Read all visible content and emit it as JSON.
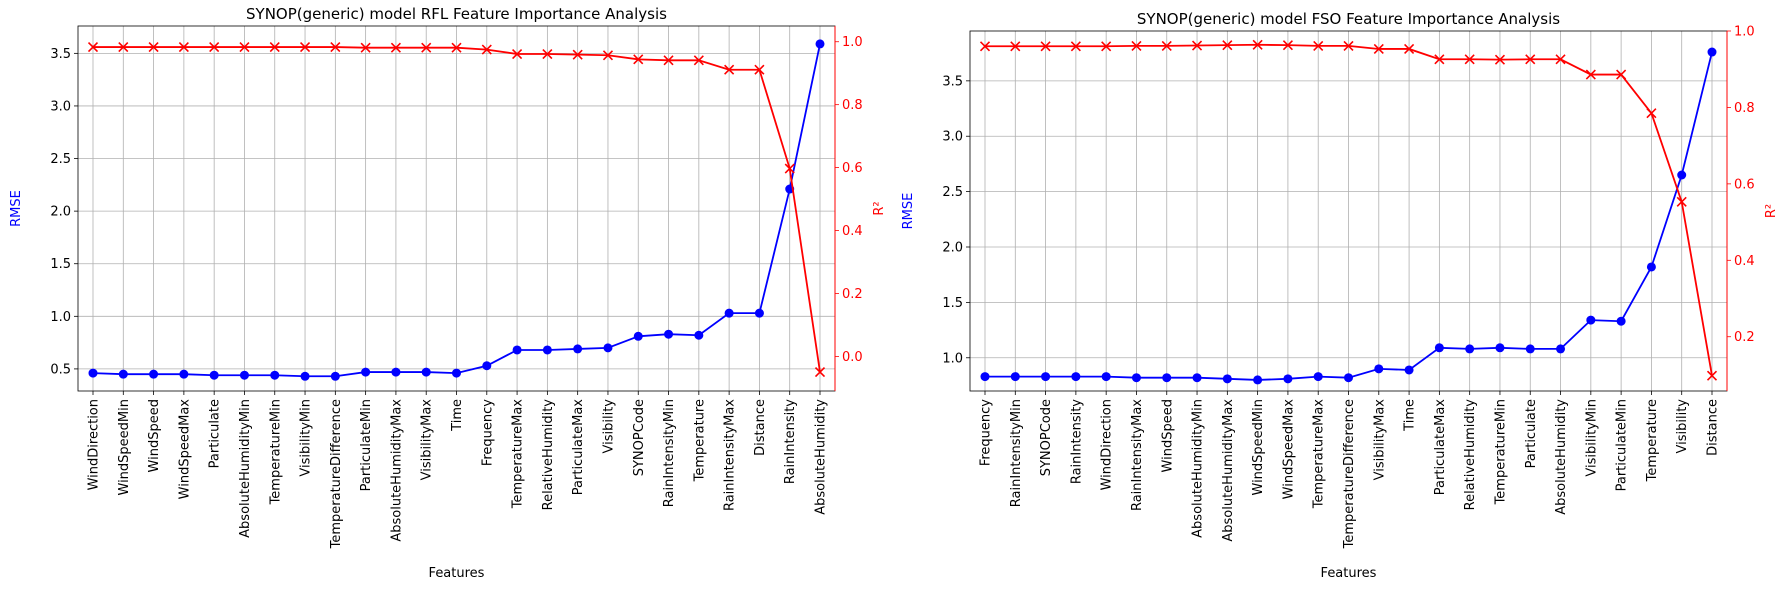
{
  "colors": {
    "rmse": "#0000ff",
    "r2": "#ff0000",
    "grid": "#b0b0b0",
    "axis": "#000000"
  },
  "chart_data": [
    {
      "type": "line",
      "title": "SYNOP(generic) model RFL Feature Importance Analysis",
      "xlabel": "Features",
      "ylabel": "RMSE",
      "y2label": "R²",
      "grid": true,
      "categories": [
        "WindDirection",
        "WindSpeedMin",
        "WindSpeed",
        "WindSpeedMax",
        "Particulate",
        "AbsoluteHumidityMin",
        "TemperatureMin",
        "VisibilityMin",
        "TemperatureDifference",
        "ParticulateMin",
        "AbsoluteHumidityMax",
        "VisibilityMax",
        "Time",
        "Frequency",
        "TemperatureMax",
        "RelativeHumidity",
        "ParticulateMax",
        "Visibility",
        "SYNOPCode",
        "RainIntensityMin",
        "Temperature",
        "RainIntensityMax",
        "Distance",
        "RainIntensity",
        "AbsoluteHumidity"
      ],
      "ylim": [
        0.29,
        3.76
      ],
      "yticks": [
        0.5,
        1.0,
        1.5,
        2.0,
        2.5,
        3.0,
        3.5
      ],
      "y2lim": [
        -0.11,
        1.05
      ],
      "y2ticks": [
        0.0,
        0.2,
        0.4,
        0.6,
        0.8,
        1.0
      ],
      "series": [
        {
          "axis": "left",
          "marker": "circle",
          "color": "#0000ff",
          "values": [
            0.46,
            0.45,
            0.45,
            0.45,
            0.44,
            0.44,
            0.44,
            0.43,
            0.43,
            0.47,
            0.47,
            0.47,
            0.46,
            0.53,
            0.68,
            0.68,
            0.69,
            0.7,
            0.81,
            0.83,
            0.82,
            1.03,
            1.03,
            2.21,
            3.59
          ]
        },
        {
          "axis": "right",
          "marker": "x",
          "color": "#ff0000",
          "values": [
            0.983,
            0.983,
            0.983,
            0.983,
            0.983,
            0.983,
            0.983,
            0.983,
            0.983,
            0.981,
            0.981,
            0.981,
            0.981,
            0.975,
            0.961,
            0.961,
            0.959,
            0.957,
            0.944,
            0.941,
            0.941,
            0.911,
            0.911,
            0.597,
            -0.05
          ]
        }
      ]
    },
    {
      "type": "line",
      "title": "SYNOP(generic) model FSO Feature Importance Analysis",
      "xlabel": "Features",
      "ylabel": "RMSE",
      "y2label": "R²",
      "grid": true,
      "categories": [
        "Frequency",
        "RainIntensityMin",
        "SYNOPCode",
        "RainIntensity",
        "WindDirection",
        "RainIntensityMax",
        "WindSpeed",
        "AbsoluteHumidityMin",
        "AbsoluteHumidityMax",
        "WindSpeedMin",
        "WindSpeedMax",
        "TemperatureMax",
        "TemperatureDifference",
        "VisibilityMax",
        "Time",
        "ParticulateMax",
        "RelativeHumidity",
        "TemperatureMin",
        "Particulate",
        "AbsoluteHumidity",
        "VisibilityMin",
        "ParticulateMin",
        "Temperature",
        "Visibility",
        "Distance"
      ],
      "ylim": [
        0.7,
        3.95
      ],
      "yticks": [
        1.0,
        1.5,
        2.0,
        2.5,
        3.0,
        3.5
      ],
      "y2lim": [
        0.058,
        1.0
      ],
      "y2ticks": [
        0.2,
        0.4,
        0.6,
        0.8,
        1.0
      ],
      "series": [
        {
          "axis": "left",
          "marker": "circle",
          "color": "#0000ff",
          "values": [
            0.83,
            0.83,
            0.83,
            0.83,
            0.83,
            0.82,
            0.82,
            0.82,
            0.81,
            0.8,
            0.81,
            0.83,
            0.82,
            0.9,
            0.89,
            1.09,
            1.08,
            1.09,
            1.08,
            1.08,
            1.34,
            1.33,
            1.82,
            2.65,
            3.76
          ]
        },
        {
          "axis": "right",
          "marker": "x",
          "color": "#ff0000",
          "values": [
            0.96,
            0.96,
            0.96,
            0.96,
            0.96,
            0.961,
            0.961,
            0.962,
            0.963,
            0.964,
            0.963,
            0.961,
            0.961,
            0.953,
            0.953,
            0.926,
            0.926,
            0.925,
            0.926,
            0.926,
            0.886,
            0.886,
            0.785,
            0.553,
            0.098
          ]
        }
      ]
    }
  ]
}
